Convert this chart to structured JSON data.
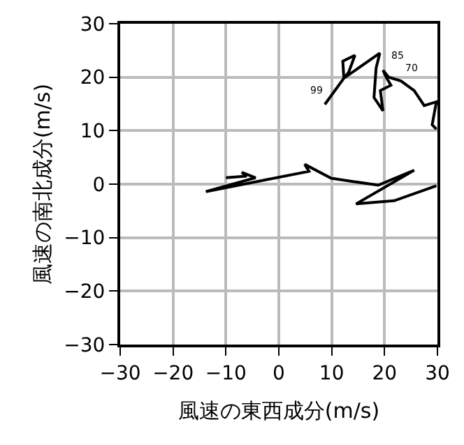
{
  "chart_data": {
    "type": "line",
    "xlabel": "風速の東西成分(m/s)",
    "ylabel": "風速の南北成分(m/s)",
    "series": [
      {
        "color": "#000000",
        "x": [
          8.7,
          12.3,
          12.1,
          14.4,
          13.2,
          12.3,
          19.1,
          18.4,
          18.0,
          19.7,
          19.2,
          21.2,
          20.3,
          19.7,
          20.8,
          23.1,
          25.6,
          27.5,
          29.8,
          29.0,
          29.8,
          null,
          29.8,
          21.8,
          14.6,
          25.6,
          18.8,
          9.9,
          4.9,
          5.7,
          -13.8,
          -4.4,
          -7.0,
          -6.1,
          -10.0
        ],
        "values": [
          14.9,
          19.8,
          23.0,
          24.1,
          20.9,
          19.8,
          24.5,
          21.7,
          16.2,
          13.7,
          17.5,
          18.5,
          20.0,
          21.3,
          20.0,
          19.3,
          17.5,
          14.7,
          15.4,
          11.1,
          10.3,
          null,
          -0.3,
          -3.1,
          -3.7,
          2.6,
          -0.2,
          1.1,
          3.7,
          2.4,
          -1.4,
          1.2,
          2.2,
          1.5,
          1.2
        ]
      }
    ],
    "annotations": [
      {
        "text": "99",
        "x": 8.7,
        "y": 14.9
      },
      "85",
      "70"
    ],
    "xlim": [
      -30,
      30
    ],
    "ylim": [
      -30,
      30
    ],
    "xticks": [
      {
        "value": -30,
        "label": "−30"
      },
      {
        "value": -20,
        "label": "−20"
      },
      {
        "value": -10,
        "label": "−10"
      },
      0,
      10,
      20,
      30
    ],
    "yticks": [
      {
        "value": -30,
        "label": "−30"
      },
      {
        "value": -20,
        "label": "−20"
      },
      {
        "value": -10,
        "label": "−10"
      },
      0,
      10,
      20,
      30
    ],
    "grid": true,
    "marker": "none",
    "line_style": "solid"
  }
}
